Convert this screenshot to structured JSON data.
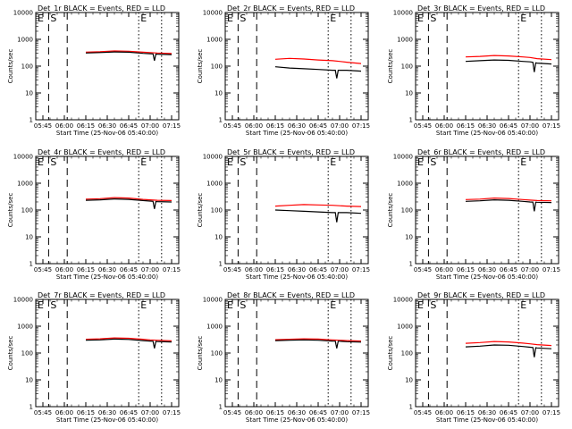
{
  "panel_titles": [
    "Det_1r BLACK = Events, RED = LLD",
    "Det_2r BLACK = Events, RED = LLD",
    "Det_3r BLACK = Events, RED = LLD",
    "Det_4r BLACK = Events, RED = LLD",
    "Det_5r BLACK = Events, RED = LLD",
    "Det_6r BLACK = Events, RED = LLD",
    "Det_7r BLACK = Events, RED = LLD",
    "Det_8r BLACK = Events, RED = LLD",
    "Det_9r BLACK = Events, RED = LLD"
  ],
  "ylabel": "Counts/sec",
  "xlabel": "Start Time (25-Nov-06 05:40:00)",
  "xtick_labels": [
    "05:45",
    "06:00",
    "06:15",
    "06:30",
    "06:45",
    "07:00",
    "07:15"
  ],
  "ytick_labels": [
    "1",
    "10",
    "100",
    "1000",
    "10000"
  ],
  "markers": {
    "e": "E",
    "s": "S"
  },
  "colors": {
    "events": "#000000",
    "lld": "#ff0000",
    "axes": "#000000"
  },
  "chart_data": [
    {
      "type": "line",
      "title": "Det_1r BLACK = Events, RED = LLD",
      "xlabel": "Start Time (25-Nov-06 05:40:00)",
      "ylabel": "Counts/sec",
      "y_scale": "log",
      "ylim": [
        1,
        10000
      ],
      "xlim_minutes": [
        0,
        100
      ],
      "x_minutes_from_start": [
        35,
        45,
        55,
        65,
        75,
        80,
        85,
        95
      ],
      "series": [
        {
          "name": "Events",
          "values": [
            310,
            320,
            340,
            330,
            300,
            290,
            280,
            270
          ],
          "dip": {
            "x": 83,
            "y": 160
          }
        },
        {
          "name": "LLD",
          "values": [
            330,
            345,
            370,
            360,
            330,
            320,
            310,
            295
          ]
        }
      ],
      "vlines": [
        {
          "x_minute": 9,
          "style": "dashed"
        },
        {
          "x_minute": 22,
          "style": "dashed"
        },
        {
          "x_minute": 72,
          "style": "dotted"
        },
        {
          "x_minute": 88,
          "style": "dotted"
        }
      ]
    },
    {
      "type": "line",
      "title": "Det_2r BLACK = Events, RED = LLD",
      "xlabel": "Start Time (25-Nov-06 05:40:00)",
      "ylabel": "Counts/sec",
      "y_scale": "log",
      "ylim": [
        1,
        10000
      ],
      "xlim_minutes": [
        0,
        100
      ],
      "x_minutes_from_start": [
        35,
        45,
        55,
        65,
        75,
        80,
        85,
        95
      ],
      "series": [
        {
          "name": "Events",
          "values": [
            95,
            85,
            80,
            75,
            70,
            70,
            70,
            65
          ],
          "dip": {
            "x": 78,
            "y": 35
          }
        },
        {
          "name": "LLD",
          "values": [
            180,
            195,
            185,
            170,
            160,
            150,
            140,
            125
          ]
        }
      ],
      "vlines": [
        {
          "x_minute": 9,
          "style": "dashed"
        },
        {
          "x_minute": 22,
          "style": "dashed"
        },
        {
          "x_minute": 72,
          "style": "dotted"
        },
        {
          "x_minute": 88,
          "style": "dotted"
        }
      ]
    },
    {
      "type": "line",
      "title": "Det_3r BLACK = Events, RED = LLD",
      "xlabel": "Start Time (25-Nov-06 05:40:00)",
      "ylabel": "Counts/sec",
      "y_scale": "log",
      "ylim": [
        1,
        10000
      ],
      "xlim_minutes": [
        0,
        100
      ],
      "x_minutes_from_start": [
        35,
        45,
        55,
        65,
        75,
        80,
        85,
        95
      ],
      "series": [
        {
          "name": "Events",
          "values": [
            150,
            160,
            170,
            165,
            150,
            145,
            130,
            120
          ],
          "dip": {
            "x": 83,
            "y": 60
          }
        },
        {
          "name": "LLD",
          "values": [
            220,
            230,
            250,
            240,
            220,
            210,
            190,
            175
          ]
        }
      ],
      "vlines": [
        {
          "x_minute": 9,
          "style": "dashed"
        },
        {
          "x_minute": 22,
          "style": "dashed"
        },
        {
          "x_minute": 72,
          "style": "dotted"
        },
        {
          "x_minute": 88,
          "style": "dotted"
        }
      ]
    },
    {
      "type": "line",
      "title": "Det_4r BLACK = Events, RED = LLD",
      "xlabel": "Start Time (25-Nov-06 05:40:00)",
      "ylabel": "Counts/sec",
      "y_scale": "log",
      "ylim": [
        1,
        10000
      ],
      "xlim_minutes": [
        0,
        100
      ],
      "x_minutes_from_start": [
        35,
        45,
        55,
        65,
        75,
        80,
        85,
        95
      ],
      "series": [
        {
          "name": "Events",
          "values": [
            230,
            240,
            260,
            250,
            225,
            215,
            205,
            200
          ],
          "dip": {
            "x": 83,
            "y": 110
          }
        },
        {
          "name": "LLD",
          "values": [
            255,
            265,
            290,
            280,
            250,
            240,
            230,
            225
          ]
        }
      ],
      "vlines": [
        {
          "x_minute": 9,
          "style": "dashed"
        },
        {
          "x_minute": 22,
          "style": "dashed"
        },
        {
          "x_minute": 72,
          "style": "dotted"
        },
        {
          "x_minute": 88,
          "style": "dotted"
        }
      ]
    },
    {
      "type": "line",
      "title": "Det_5r BLACK = Events, RED = LLD",
      "xlabel": "Start Time (25-Nov-06 05:40:00)",
      "ylabel": "Counts/sec",
      "y_scale": "log",
      "ylim": [
        1,
        10000
      ],
      "xlim_minutes": [
        0,
        100
      ],
      "x_minutes_from_start": [
        35,
        45,
        55,
        65,
        75,
        80,
        85,
        95
      ],
      "series": [
        {
          "name": "Events",
          "values": [
            100,
            95,
            90,
            85,
            80,
            80,
            80,
            75
          ],
          "dip": {
            "x": 78,
            "y": 35
          }
        },
        {
          "name": "LLD",
          "values": [
            140,
            150,
            160,
            155,
            150,
            145,
            140,
            135
          ]
        }
      ],
      "vlines": [
        {
          "x_minute": 9,
          "style": "dashed"
        },
        {
          "x_minute": 22,
          "style": "dashed"
        },
        {
          "x_minute": 72,
          "style": "dotted"
        },
        {
          "x_minute": 88,
          "style": "dotted"
        }
      ]
    },
    {
      "type": "line",
      "title": "Det_6r BLACK = Events, RED = LLD",
      "xlabel": "Start Time (25-Nov-06 05:40:00)",
      "ylabel": "Counts/sec",
      "y_scale": "log",
      "ylim": [
        1,
        10000
      ],
      "xlim_minutes": [
        0,
        100
      ],
      "x_minutes_from_start": [
        35,
        45,
        55,
        65,
        75,
        80,
        85,
        95
      ],
      "series": [
        {
          "name": "Events",
          "values": [
            210,
            220,
            240,
            230,
            210,
            200,
            195,
            190
          ],
          "dip": {
            "x": 83,
            "y": 90
          }
        },
        {
          "name": "LLD",
          "values": [
            245,
            255,
            280,
            270,
            245,
            235,
            225,
            220
          ]
        }
      ],
      "vlines": [
        {
          "x_minute": 9,
          "style": "dashed"
        },
        {
          "x_minute": 22,
          "style": "dashed"
        },
        {
          "x_minute": 72,
          "style": "dotted"
        },
        {
          "x_minute": 88,
          "style": "dotted"
        }
      ]
    },
    {
      "type": "line",
      "title": "Det_7r BLACK = Events, RED = LLD",
      "xlabel": "Start Time (25-Nov-06 05:40:00)",
      "ylabel": "Counts/sec",
      "y_scale": "log",
      "ylim": [
        1,
        10000
      ],
      "xlim_minutes": [
        0,
        100
      ],
      "x_minutes_from_start": [
        35,
        45,
        55,
        65,
        75,
        80,
        85,
        95
      ],
      "series": [
        {
          "name": "Events",
          "values": [
            300,
            310,
            330,
            320,
            290,
            280,
            270,
            260
          ],
          "dip": {
            "x": 83,
            "y": 150
          }
        },
        {
          "name": "LLD",
          "values": [
            325,
            340,
            365,
            355,
            325,
            310,
            300,
            285
          ]
        }
      ],
      "vlines": [
        {
          "x_minute": 9,
          "style": "dashed"
        },
        {
          "x_minute": 22,
          "style": "dashed"
        },
        {
          "x_minute": 72,
          "style": "dotted"
        },
        {
          "x_minute": 88,
          "style": "dotted"
        }
      ]
    },
    {
      "type": "line",
      "title": "Det_8r BLACK = Events, RED = LLD",
      "xlabel": "Start Time (25-Nov-06 05:40:00)",
      "ylabel": "Counts/sec",
      "y_scale": "log",
      "ylim": [
        1,
        10000
      ],
      "xlim_minutes": [
        0,
        100
      ],
      "x_minutes_from_start": [
        35,
        45,
        55,
        65,
        75,
        80,
        85,
        95
      ],
      "series": [
        {
          "name": "Events",
          "values": [
            290,
            300,
            310,
            300,
            280,
            275,
            265,
            255
          ],
          "dip": {
            "x": 78,
            "y": 150
          }
        },
        {
          "name": "LLD",
          "values": [
            315,
            325,
            340,
            330,
            310,
            300,
            290,
            280
          ]
        }
      ],
      "vlines": [
        {
          "x_minute": 9,
          "style": "dashed"
        },
        {
          "x_minute": 22,
          "style": "dashed"
        },
        {
          "x_minute": 72,
          "style": "dotted"
        },
        {
          "x_minute": 88,
          "style": "dotted"
        }
      ]
    },
    {
      "type": "line",
      "title": "Det_9r BLACK = Events, RED = LLD",
      "xlabel": "Start Time (25-Nov-06 05:40:00)",
      "ylabel": "Counts/sec",
      "y_scale": "log",
      "ylim": [
        1,
        10000
      ],
      "xlim_minutes": [
        0,
        100
      ],
      "x_minutes_from_start": [
        35,
        45,
        55,
        65,
        75,
        80,
        85,
        95
      ],
      "series": [
        {
          "name": "Events",
          "values": [
            170,
            180,
            200,
            195,
            175,
            165,
            155,
            145
          ],
          "dip": {
            "x": 83,
            "y": 70
          }
        },
        {
          "name": "LLD",
          "values": [
            230,
            245,
            270,
            260,
            235,
            220,
            205,
            190
          ]
        }
      ],
      "vlines": [
        {
          "x_minute": 9,
          "style": "dashed"
        },
        {
          "x_minute": 22,
          "style": "dashed"
        },
        {
          "x_minute": 72,
          "style": "dotted"
        },
        {
          "x_minute": 88,
          "style": "dotted"
        }
      ]
    }
  ]
}
